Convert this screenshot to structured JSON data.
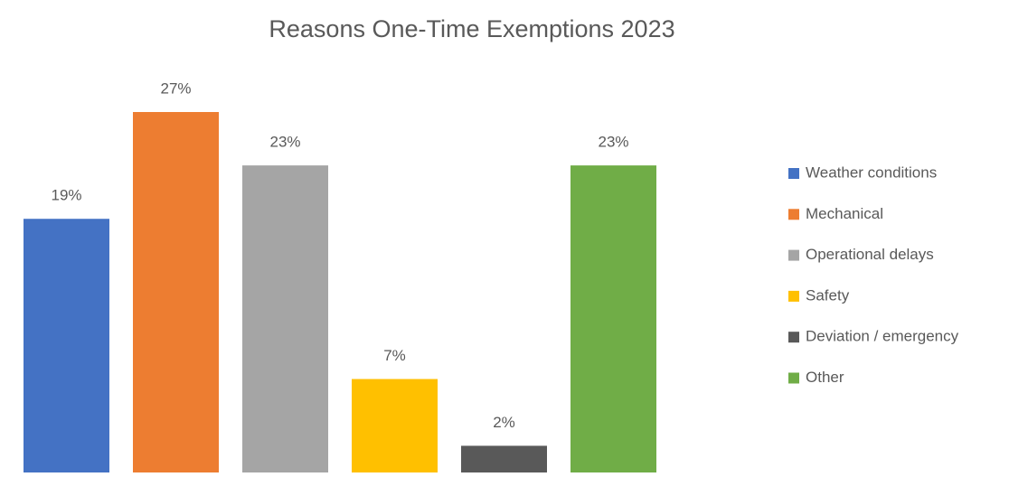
{
  "chart_data": {
    "type": "bar",
    "title": "Reasons One-Time Exemptions 2023",
    "categories": [
      "Weather conditions",
      "Mechanical",
      "Operational delays",
      "Safety",
      "Deviation / emergency",
      "Other"
    ],
    "values": [
      19,
      27,
      23,
      7,
      2,
      23
    ],
    "value_labels": [
      "19%",
      "27%",
      "23%",
      "7%",
      "2%",
      "23%"
    ],
    "colors": [
      "#4472c4",
      "#ed7d31",
      "#a5a5a5",
      "#ffc000",
      "#595959",
      "#70ad47"
    ],
    "legend": "right"
  }
}
